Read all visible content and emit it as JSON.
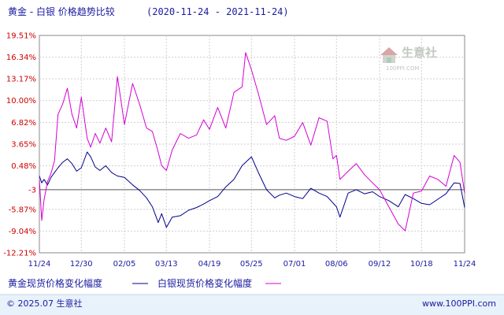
{
  "chart_data": {
    "type": "line",
    "title": "黄金 - 白银 价格趋势比较",
    "date_range": "(2020-11-24 - 2021-11-24)",
    "y_ticks": [
      19.51,
      16.34,
      13.17,
      10.0,
      6.82,
      3.65,
      0.48,
      -3.0,
      -5.87,
      -9.04,
      -12.21
    ],
    "y_tick_labels": [
      "19.51%",
      "16.34%",
      "13.17%",
      "10.00%",
      "6.82%",
      "3.65%",
      "0.48%",
      "-3",
      "-5.87%",
      "-9.04%",
      "-12.21%"
    ],
    "ylim": [
      -12.21,
      19.51
    ],
    "xlim": [
      "2020-11-24",
      "2021-11-24"
    ],
    "x_ticks": [
      "2020-11-24",
      "2020-12-30",
      "2021-02-05",
      "2021-03-13",
      "2021-04-19",
      "2021-05-25",
      "2021-07-01",
      "2021-08-06",
      "2021-09-12",
      "2021-10-18",
      "2021-11-24"
    ],
    "x_tick_labels": [
      "11/24",
      "12/30",
      "02/05",
      "03/13",
      "04/19",
      "05/25",
      "07/01",
      "08/06",
      "09/12",
      "10/18",
      "11/24"
    ],
    "reference_line": -3.0,
    "grid": true,
    "legend_position": "bottom-left",
    "series": [
      {
        "name": "黄金现货价格变化幅度",
        "color": "#00008b",
        "x": [
          "2020-11-24",
          "2020-11-26",
          "2020-11-28",
          "2020-12-01",
          "2020-12-04",
          "2020-12-07",
          "2020-12-10",
          "2020-12-14",
          "2020-12-18",
          "2020-12-22",
          "2020-12-26",
          "2020-12-30",
          "2021-01-04",
          "2021-01-07",
          "2021-01-11",
          "2021-01-15",
          "2021-01-20",
          "2021-01-25",
          "2021-01-30",
          "2021-02-05",
          "2021-02-12",
          "2021-02-18",
          "2021-02-24",
          "2021-03-01",
          "2021-03-06",
          "2021-03-09",
          "2021-03-13",
          "2021-03-18",
          "2021-03-25",
          "2021-04-01",
          "2021-04-08",
          "2021-04-14",
          "2021-04-19",
          "2021-04-26",
          "2021-05-03",
          "2021-05-10",
          "2021-05-17",
          "2021-05-25",
          "2021-05-31",
          "2021-06-07",
          "2021-06-14",
          "2021-06-18",
          "2021-06-24",
          "2021-07-01",
          "2021-07-08",
          "2021-07-15",
          "2021-07-22",
          "2021-07-29",
          "2021-08-06",
          "2021-08-09",
          "2021-08-16",
          "2021-08-23",
          "2021-08-30",
          "2021-09-06",
          "2021-09-12",
          "2021-09-20",
          "2021-09-28",
          "2021-10-04",
          "2021-10-11",
          "2021-10-18",
          "2021-10-25",
          "2021-11-01",
          "2021-11-08",
          "2021-11-15",
          "2021-11-20",
          "2021-11-24"
        ],
        "values": [
          -1.0,
          -2.0,
          -1.5,
          -2.3,
          -1.2,
          -0.5,
          0.2,
          1.0,
          1.5,
          0.8,
          -0.3,
          0.2,
          2.5,
          1.8,
          0.3,
          -0.2,
          0.5,
          -0.5,
          -1.0,
          -1.2,
          -2.3,
          -3.1,
          -4.2,
          -5.5,
          -7.8,
          -6.5,
          -8.5,
          -7.0,
          -6.8,
          -6.0,
          -5.6,
          -5.1,
          -4.6,
          -4.0,
          -2.6,
          -1.5,
          0.5,
          1.8,
          -0.5,
          -3.0,
          -4.2,
          -3.8,
          -3.5,
          -4.0,
          -4.3,
          -2.8,
          -3.5,
          -4.0,
          -5.5,
          -7.0,
          -3.5,
          -3.0,
          -3.6,
          -3.3,
          -4.0,
          -4.6,
          -5.5,
          -3.7,
          -4.3,
          -5.0,
          -5.2,
          -4.4,
          -3.6,
          -2.0,
          -2.1,
          -5.6
        ]
      },
      {
        "name": "白银现货价格变化幅度",
        "color": "#d400d4",
        "x": [
          "2020-11-24",
          "2020-11-26",
          "2020-11-28",
          "2020-12-01",
          "2020-12-04",
          "2020-12-07",
          "2020-12-10",
          "2020-12-14",
          "2020-12-18",
          "2020-12-22",
          "2020-12-26",
          "2020-12-30",
          "2021-01-04",
          "2021-01-07",
          "2021-01-11",
          "2021-01-15",
          "2021-01-20",
          "2021-01-25",
          "2021-01-30",
          "2021-02-02",
          "2021-02-05",
          "2021-02-12",
          "2021-02-18",
          "2021-02-24",
          "2021-03-01",
          "2021-03-06",
          "2021-03-09",
          "2021-03-13",
          "2021-03-18",
          "2021-03-25",
          "2021-04-01",
          "2021-04-08",
          "2021-04-14",
          "2021-04-19",
          "2021-04-26",
          "2021-05-03",
          "2021-05-10",
          "2021-05-17",
          "2021-05-20",
          "2021-05-25",
          "2021-05-31",
          "2021-06-07",
          "2021-06-14",
          "2021-06-18",
          "2021-06-24",
          "2021-07-01",
          "2021-07-08",
          "2021-07-15",
          "2021-07-22",
          "2021-07-29",
          "2021-08-03",
          "2021-08-06",
          "2021-08-09",
          "2021-08-16",
          "2021-08-23",
          "2021-08-30",
          "2021-09-06",
          "2021-09-12",
          "2021-09-20",
          "2021-09-28",
          "2021-10-04",
          "2021-10-11",
          "2021-10-18",
          "2021-10-25",
          "2021-11-01",
          "2021-11-08",
          "2021-11-15",
          "2021-11-20",
          "2021-11-24"
        ],
        "values": [
          -1.5,
          -7.5,
          -4.5,
          -1.8,
          -0.6,
          1.2,
          8.0,
          9.5,
          11.8,
          8.0,
          6.0,
          10.5,
          4.5,
          3.2,
          5.2,
          3.8,
          6.0,
          4.0,
          13.5,
          10.0,
          6.5,
          12.5,
          9.5,
          6.0,
          5.5,
          2.5,
          0.5,
          -0.2,
          2.8,
          5.2,
          4.5,
          5.0,
          7.2,
          5.8,
          9.0,
          6.0,
          11.2,
          12.0,
          17.0,
          14.5,
          11.0,
          6.5,
          7.8,
          4.5,
          4.2,
          4.8,
          6.8,
          3.5,
          7.5,
          7.0,
          1.5,
          2.0,
          -1.5,
          -0.3,
          0.8,
          -0.8,
          -2.0,
          -3.0,
          -5.5,
          -8.0,
          -9.0,
          -3.5,
          -3.2,
          -1.0,
          -1.5,
          -2.5,
          2.0,
          1.0,
          -3.5
        ]
      }
    ]
  },
  "legend": {
    "gold_label": "黄金现货价格变化幅度",
    "silver_label": "白银现货价格变化幅度"
  },
  "watermark": {
    "brand": "生意社",
    "site": "100PPI.COM"
  },
  "footer": {
    "copyright": "© 2025.07 生意社",
    "site": "www.100PPI.com"
  },
  "colors": {
    "gold_line": "#00008b",
    "silver_line": "#d400d4",
    "axis_text_blue": "#1a1aa0",
    "axis_text_red": "#cc0000",
    "footer_bg": "#e8f2fa"
  }
}
